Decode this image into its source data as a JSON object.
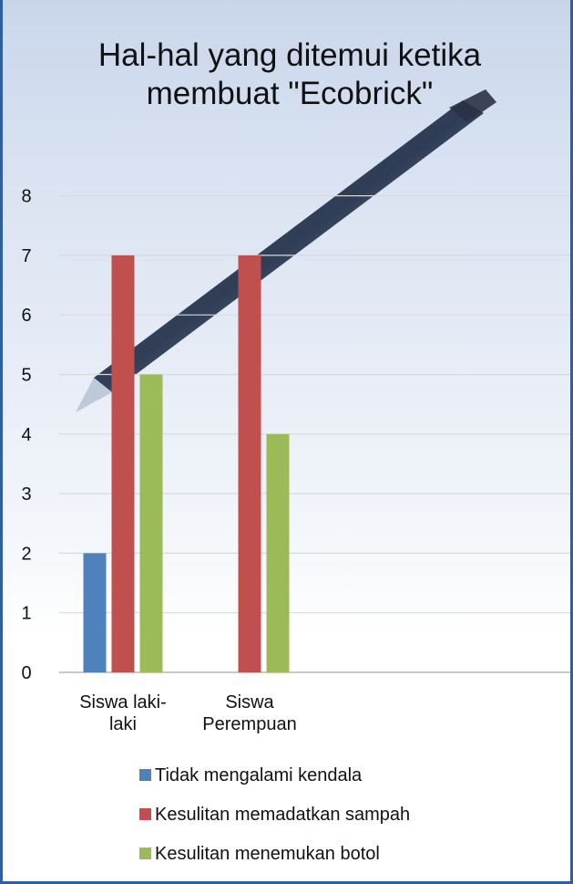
{
  "chart_data": {
    "type": "bar",
    "title": "Hal-hal yang ditemui ketika membuat \"Ecobrick\"",
    "categories": [
      [
        "Siswa laki-",
        "laki"
      ],
      [
        "Siswa",
        "Perempuan"
      ]
    ],
    "series": [
      {
        "name": "Tidak mengalami kendala",
        "values": [
          2,
          0
        ],
        "color": "#4f81bd"
      },
      {
        "name": "Kesulitan memadatkan sampah",
        "values": [
          7,
          7
        ],
        "color": "#c0504d"
      },
      {
        "name": "Kesulitan menemukan botol",
        "values": [
          5,
          4
        ],
        "color": "#9bbb59"
      }
    ],
    "y_ticks": [
      "0",
      "1",
      "2",
      "3",
      "4",
      "5",
      "6",
      "7",
      "8"
    ],
    "ylim": [
      0,
      8
    ],
    "grid": true,
    "legend_position": "bottom"
  }
}
